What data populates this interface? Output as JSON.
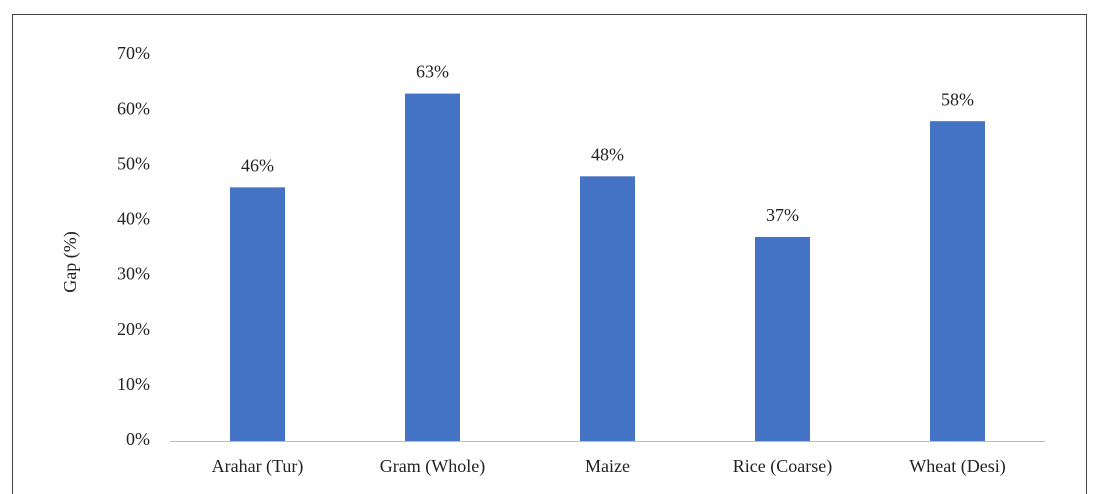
{
  "chart_data": {
    "type": "bar",
    "y_label": "Gap (%)",
    "categories": [
      "Arahar (Tur)",
      "Gram (Whole)",
      "Maize",
      "Rice (Coarse)",
      "Wheat (Desi)"
    ],
    "values": [
      46,
      63,
      48,
      37,
      58
    ],
    "value_labels": [
      "46%",
      "63%",
      "48%",
      "37%",
      "58%"
    ],
    "color": "#4472c4",
    "ylim": [
      0,
      70
    ],
    "yticks": [
      {
        "value": 0,
        "label": "0%"
      },
      {
        "value": 10,
        "label": "10%"
      },
      {
        "value": 20,
        "label": "20%"
      },
      {
        "value": 30,
        "label": "30%"
      },
      {
        "value": 40,
        "label": "40%"
      },
      {
        "value": 50,
        "label": "50%"
      },
      {
        "value": 60,
        "label": "60%"
      },
      {
        "value": 70,
        "label": "70%"
      }
    ],
    "grid": false
  }
}
